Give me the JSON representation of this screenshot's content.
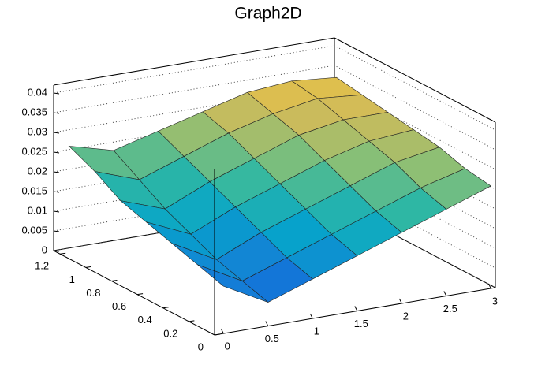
{
  "chart_data": {
    "type": "surface",
    "title": "Graph2D",
    "x": [
      0,
      0.5,
      1,
      1.5,
      2,
      2.5,
      3
    ],
    "y": [
      0,
      0.2,
      0.4,
      0.6,
      0.8,
      1,
      1.2
    ],
    "z": [
      [
        0.012,
        0.006,
        0.01,
        0.014,
        0.018,
        0.022,
        0.026
      ],
      [
        0.014,
        0.008,
        0.012,
        0.016,
        0.02,
        0.024,
        0.027
      ],
      [
        0.016,
        0.01,
        0.015,
        0.019,
        0.023,
        0.027,
        0.029
      ],
      [
        0.018,
        0.013,
        0.018,
        0.022,
        0.026,
        0.029,
        0.03
      ],
      [
        0.02,
        0.016,
        0.021,
        0.025,
        0.029,
        0.031,
        0.031
      ],
      [
        0.024,
        0.02,
        0.024,
        0.028,
        0.031,
        0.033,
        0.032
      ],
      [
        0.027,
        0.024,
        0.027,
        0.03,
        0.033,
        0.034,
        0.033
      ]
    ],
    "xlim": [
      -0.1,
      3.05
    ],
    "ylim": [
      0,
      1.25
    ],
    "zlim": [
      0,
      0.042
    ],
    "xticks": [
      0,
      0.5,
      1,
      1.5,
      2,
      2.5,
      3
    ],
    "yticks": [
      0,
      0.2,
      0.4,
      0.6,
      0.8,
      1,
      1.2
    ],
    "zticks": [
      0,
      0.005,
      0.01,
      0.015,
      0.02,
      0.025,
      0.03,
      0.035,
      0.04
    ],
    "grid": true,
    "palette": [
      "#352a87",
      "#0f5cdd",
      "#1481d6",
      "#06a4ca",
      "#2eb7a4",
      "#87bf77",
      "#d1bb59",
      "#fec832",
      "#f9fb0e"
    ]
  }
}
